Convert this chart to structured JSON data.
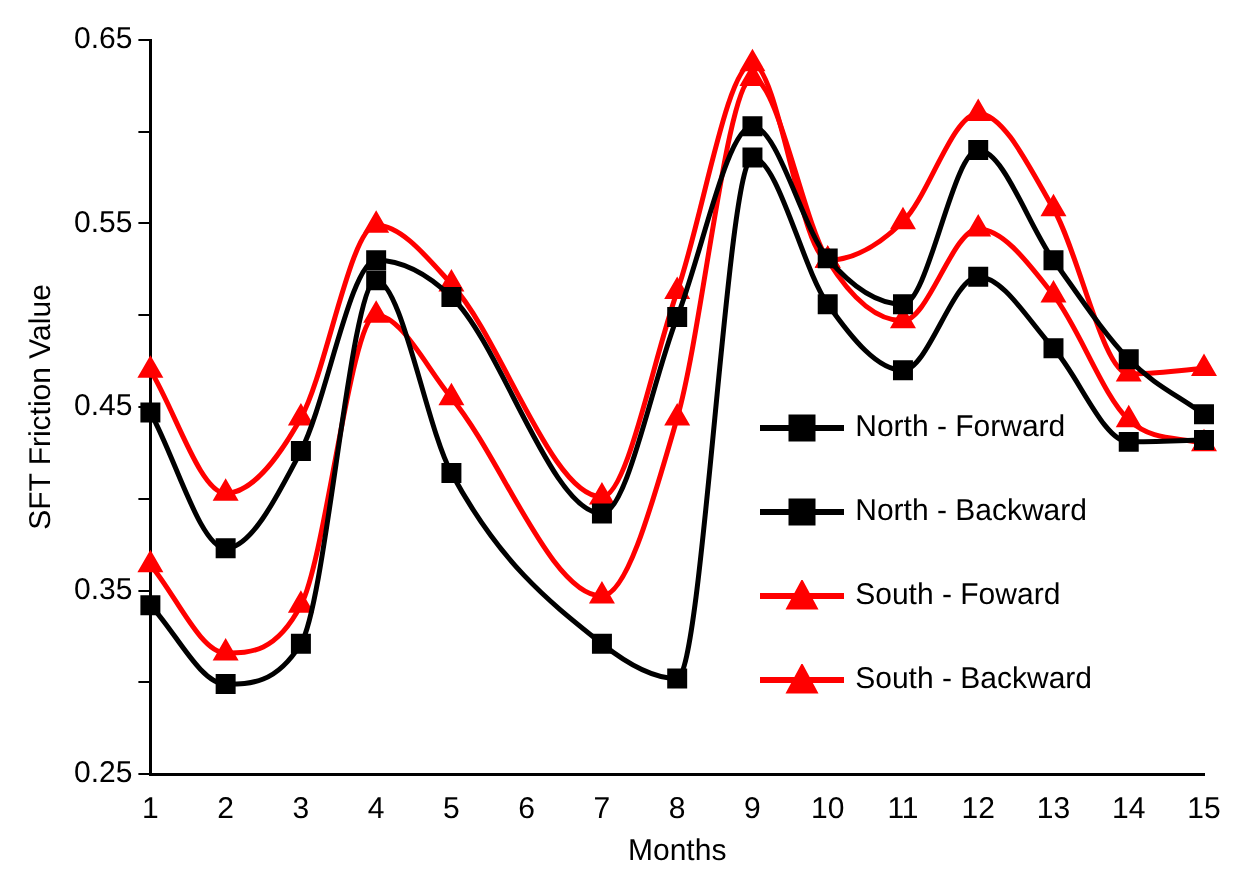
{
  "chart_data": {
    "type": "line",
    "xlabel": "Months",
    "ylabel": "SFT Friction Value",
    "x": [
      1,
      2,
      3,
      4,
      5,
      7,
      8,
      9,
      10,
      11,
      12,
      13,
      14,
      15
    ],
    "xlim": [
      1,
      15
    ],
    "xticks": [
      1,
      2,
      3,
      4,
      5,
      6,
      7,
      8,
      9,
      10,
      11,
      12,
      13,
      14,
      15
    ],
    "ylim": [
      0.25,
      0.65
    ],
    "yticks": [
      0.25,
      {
        "value": 0.3,
        "label": null
      },
      0.35,
      {
        "value": 0.4,
        "label": null
      },
      0.45,
      {
        "value": 0.5,
        "label": null
      },
      0.55,
      {
        "value": 0.6,
        "label": null
      },
      0.65
    ],
    "grid": false,
    "legend": "bottom right",
    "line_style": "solid",
    "series": [
      {
        "name": "North - Forward",
        "color": "#000000",
        "marker": "square",
        "values": [
          0.342,
          0.299,
          0.321,
          0.519,
          0.414,
          0.321,
          0.302,
          0.586,
          0.506,
          0.47,
          0.521,
          0.482,
          0.431,
          0.432
        ]
      },
      {
        "name": "North - Backward",
        "color": "#000000",
        "marker": "square",
        "values": [
          0.447,
          0.373,
          0.426,
          0.53,
          0.51,
          0.392,
          0.499,
          0.603,
          0.531,
          0.506,
          0.59,
          0.53,
          0.476,
          0.446
        ]
      },
      {
        "name": "South - Foward",
        "color": "#ff0000",
        "marker": "triangle",
        "values": [
          0.364,
          0.316,
          0.342,
          0.5,
          0.455,
          0.347,
          0.444,
          0.629,
          0.53,
          0.497,
          0.547,
          0.511,
          0.443,
          0.43
        ]
      },
      {
        "name": "South - Backward",
        "color": "#ff0000",
        "marker": "triangle",
        "values": [
          0.47,
          0.403,
          0.444,
          0.549,
          0.517,
          0.401,
          0.513,
          0.637,
          0.53,
          0.551,
          0.61,
          0.558,
          0.468,
          0.471
        ]
      }
    ]
  }
}
